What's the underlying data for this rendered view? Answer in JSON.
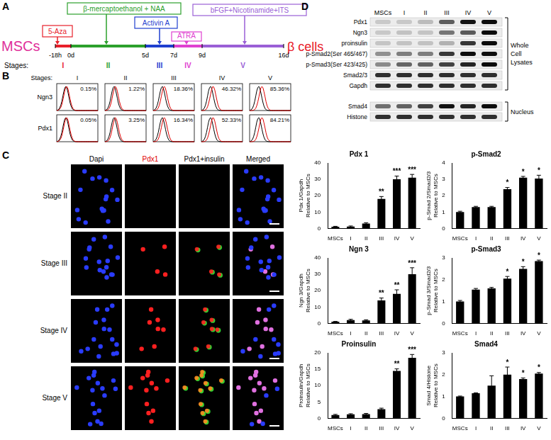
{
  "panels": {
    "A": {
      "label": "A",
      "start": {
        "text": "MSCs",
        "color": "#e0309a"
      },
      "end": {
        "text": "β cells",
        "color": "#e8202a"
      },
      "stages_label": "Stages:",
      "stages": [
        {
          "name": "I",
          "treatment": "5-Aza",
          "color": "#e8202a"
        },
        {
          "name": "II",
          "treatment": "β-mercaptoethanol + NAA",
          "color": "#2ca02c"
        },
        {
          "name": "III",
          "treatment": "Activin A",
          "color": "#1f3fcf"
        },
        {
          "name": "IV",
          "treatment": "ATRA",
          "color": "#e040d0"
        },
        {
          "name": "V",
          "treatment": "bFGF+Nicotinamide+ITS",
          "color": "#9a5fd6"
        }
      ],
      "timepoints": [
        "-18h",
        "0d",
        "5d",
        "7d",
        "9d",
        "16d"
      ]
    },
    "B": {
      "label": "B",
      "stages_label": "Stages:",
      "stages": [
        "I",
        "II",
        "III",
        "IV",
        "V"
      ],
      "rows": [
        {
          "name": "Ngn3",
          "percent_labels": [
            "0.15%",
            "1.22%",
            "18.36%",
            "46.32%",
            "85.36%"
          ]
        },
        {
          "name": "Pdx1",
          "percent_labels": [
            "0.05%",
            "3.25%",
            "16.34%",
            "52.33%",
            "84.21%"
          ]
        }
      ]
    },
    "C": {
      "label": "C",
      "columns": [
        {
          "text": "Dapi",
          "color": "#000000"
        },
        {
          "text": "Pdx1",
          "color": "#e00000"
        },
        {
          "text": "Pdx1+insulin",
          "color": "#000000"
        },
        {
          "text": "Merged",
          "color": "#000000"
        }
      ],
      "rows": [
        "Stage II",
        "Stage III",
        "Stage IV",
        "Stage V"
      ]
    },
    "D": {
      "label": "D",
      "lanes": [
        "MSCs",
        "I",
        "II",
        "III",
        "IV",
        "V"
      ],
      "sections": [
        {
          "labels": [
            "Whole",
            "Cell",
            "Lysates"
          ],
          "proteins": [
            "Pdx1",
            "Ngn3",
            "proinsulin",
            "p-Smad2(Ser 465/467)",
            "p-Smad3(Ser 423/425)",
            "Smad2/3",
            "Gapdh"
          ]
        },
        {
          "labels": [
            "Nucleus"
          ],
          "proteins": [
            "Smad4",
            "Histone"
          ]
        }
      ]
    }
  },
  "chart_data": [
    {
      "type": "bar",
      "title": "Pdx 1",
      "y_label": [
        "Pdx 1/Gapdh",
        "Relative to MSCs"
      ],
      "categories": [
        "MSCs",
        "I",
        "II",
        "III",
        "IV",
        "V"
      ],
      "values": [
        1,
        1.2,
        3,
        18,
        30,
        31
      ],
      "errors": [
        0.3,
        0.3,
        0.5,
        1.5,
        2,
        2
      ],
      "significance": [
        null,
        null,
        null,
        "**",
        "***",
        "***"
      ],
      "color": "#000000",
      "ylim": [
        0,
        40
      ],
      "yticks": [
        0,
        10,
        20,
        30,
        40
      ]
    },
    {
      "type": "bar",
      "title": "p-Smad2",
      "y_label": [
        "p-Smad 2/Smad2/3",
        "Relative to MSCs"
      ],
      "categories": [
        "MSCs",
        "I",
        "II",
        "III",
        "IV",
        "V"
      ],
      "values": [
        1,
        1.3,
        1.3,
        2.4,
        3.1,
        3.05
      ],
      "errors": [
        0.05,
        0.05,
        0.05,
        0.1,
        0.08,
        0.2
      ],
      "significance": [
        null,
        null,
        null,
        "*",
        "*",
        "*"
      ],
      "color": "#000000",
      "ylim": [
        0,
        4
      ],
      "yticks": [
        0,
        1,
        2,
        3,
        4
      ]
    },
    {
      "type": "bar",
      "title": "Ngn 3",
      "y_label": [
        "Ngn 3/Gapdh",
        "Relative to MSCs"
      ],
      "categories": [
        "MSCs",
        "I",
        "II",
        "III",
        "IV",
        "V"
      ],
      "values": [
        1,
        2,
        1.8,
        14,
        18,
        30
      ],
      "errors": [
        0.2,
        0.5,
        0.4,
        1.5,
        2.5,
        4
      ],
      "significance": [
        null,
        null,
        null,
        "**",
        "**",
        "***"
      ],
      "color": "#000000",
      "ylim": [
        0,
        40
      ],
      "yticks": [
        0,
        10,
        20,
        30,
        40
      ]
    },
    {
      "type": "bar",
      "title": "p-Smad3",
      "y_label": [
        "p-Smad 3/Smad2/3",
        "Relative to MSCs"
      ],
      "categories": [
        "MSCs",
        "I",
        "II",
        "III",
        "IV",
        "V"
      ],
      "values": [
        1,
        1.55,
        1.6,
        2.05,
        2.5,
        2.85
      ],
      "errors": [
        0.05,
        0.05,
        0.05,
        0.1,
        0.1,
        0.05
      ],
      "significance": [
        null,
        null,
        null,
        "*",
        "*",
        "*"
      ],
      "color": "#000000",
      "ylim": [
        0,
        3
      ],
      "yticks": [
        0,
        1,
        2,
        3
      ]
    },
    {
      "type": "bar",
      "title": "Proinsulin",
      "y_label": [
        "Proinsulin/Gapdh",
        "Relative to MSCs"
      ],
      "categories": [
        "MSCs",
        "I",
        "II",
        "III",
        "IV",
        "V"
      ],
      "values": [
        1,
        1.2,
        1.3,
        2.8,
        14.5,
        18.5
      ],
      "errors": [
        0.2,
        0.2,
        0.2,
        0.3,
        0.6,
        1
      ],
      "significance": [
        null,
        null,
        null,
        null,
        "**",
        "***"
      ],
      "color": "#000000",
      "ylim": [
        0,
        20
      ],
      "yticks": [
        0,
        5,
        10,
        15,
        20
      ]
    },
    {
      "type": "bar",
      "title": "Smad4",
      "y_label": [
        "Smad 4/Histone",
        "Relative to MSCs"
      ],
      "categories": [
        "MSCs",
        "I",
        "II",
        "III",
        "IV",
        "V"
      ],
      "values": [
        1,
        1.15,
        1.5,
        2.0,
        1.8,
        2.05
      ],
      "errors": [
        0.02,
        0.02,
        0.45,
        0.35,
        0.05,
        0.05
      ],
      "significance": [
        null,
        null,
        null,
        "*",
        "*",
        "*"
      ],
      "color": "#000000",
      "ylim": [
        0,
        3
      ],
      "yticks": [
        0,
        1,
        2,
        3
      ]
    }
  ]
}
